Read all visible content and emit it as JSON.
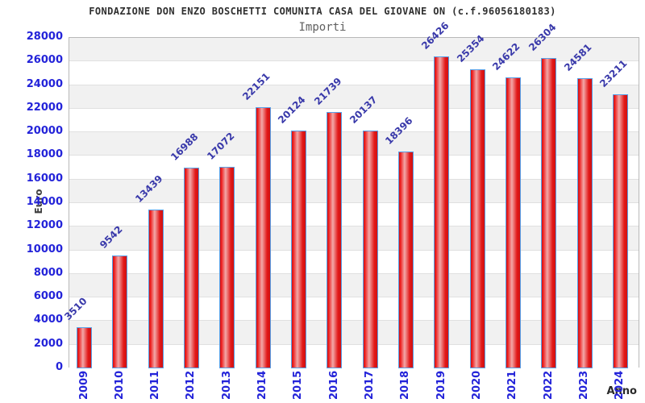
{
  "header": {
    "title": "FONDAZIONE DON ENZO BOSCHETTI COMUNITA CASA DEL GIOVANE ON (c.f.96056180183)",
    "subtitle": "Importi"
  },
  "chart_data": {
    "type": "bar",
    "title": "FONDAZIONE DON ENZO BOSCHETTI COMUNITA CASA DEL GIOVANE ON (c.f.96056180183)",
    "subtitle": "Importi",
    "xlabel": "Anno",
    "ylabel": "Euro",
    "categories": [
      "2009",
      "2010",
      "2011",
      "2012",
      "2013",
      "2014",
      "2015",
      "2016",
      "2017",
      "2018",
      "2019",
      "2020",
      "2021",
      "2022",
      "2023",
      "2024"
    ],
    "values": [
      3510,
      9542,
      13439,
      16988,
      17072,
      22151,
      20124,
      21739,
      20137,
      18396,
      26426,
      25354,
      24622,
      26304,
      24581,
      23211
    ],
    "ylim": [
      0,
      28000
    ],
    "ytick_step": 2000,
    "grid": "horizontal-bands-alternating",
    "legend": "none",
    "value_labels": "above-bars-rotated-45",
    "colors": {
      "bar_fill_edge": "#e21818",
      "bar_fill_center": "#f2a8a8",
      "bar_border": "#57a0e8",
      "tick_label": "#2323d9",
      "value_label": "#3939aa",
      "band_gray": "#f1f1f1",
      "band_white": "#ffffff",
      "axis_title": "#404040",
      "title_text": "#303030"
    }
  }
}
